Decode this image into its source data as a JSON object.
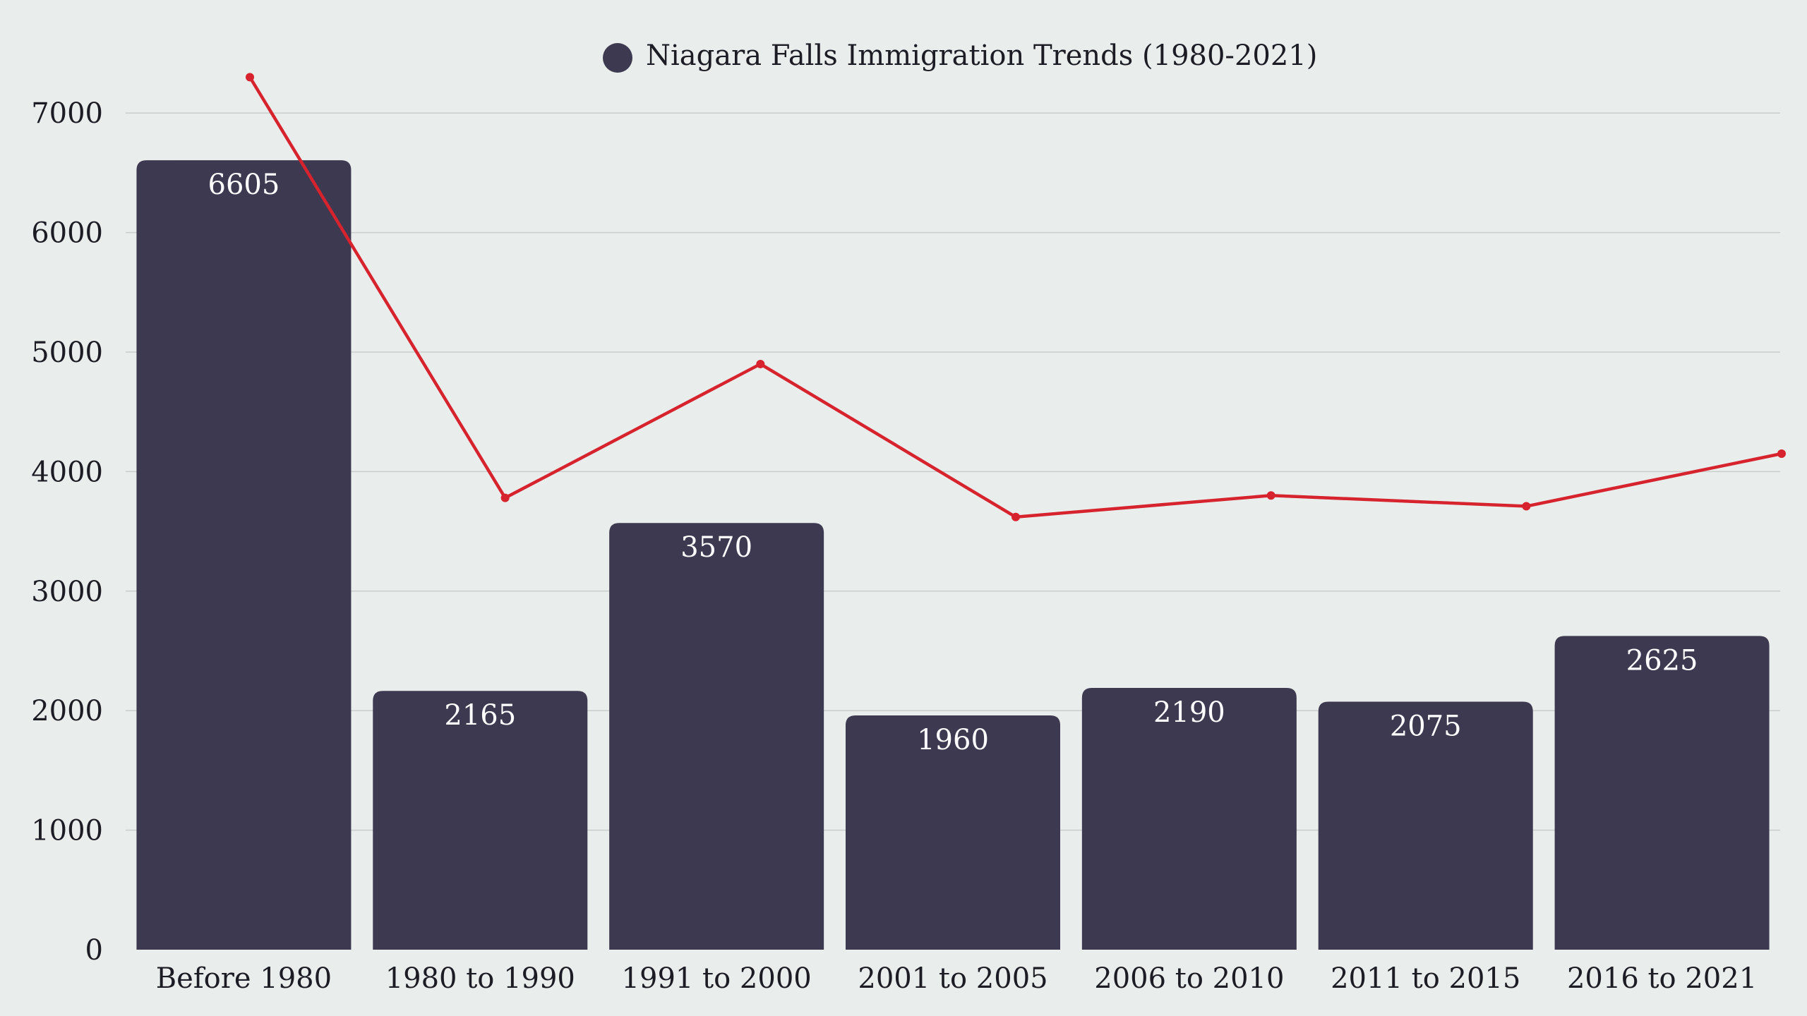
{
  "chart_data": {
    "type": "bar",
    "categories": [
      "Before 1980",
      "1980 to 1990",
      "1991 to 2000",
      "2001 to 2005",
      "2006 to 2010",
      "2011 to 2015",
      "2016 to 2021"
    ],
    "series": [
      {
        "name": "Niagara Falls Immigration Trends (1980-2021)",
        "type": "bar",
        "values": [
          6605,
          2165,
          3570,
          1960,
          2190,
          2075,
          2625
        ],
        "data_labels": [
          "6605",
          "2165",
          "3570",
          "1960",
          "2190",
          "2075",
          "2625"
        ],
        "color": "#3d3950"
      },
      {
        "type": "line",
        "values": [
          7300,
          3780,
          4900,
          3620,
          3800,
          3710,
          4150
        ],
        "color": "#d6232d"
      }
    ],
    "yticks": [
      "0",
      "1000",
      "2000",
      "3000",
      "4000",
      "5000",
      "6000",
      "7000"
    ],
    "ylim": [
      0,
      7000
    ],
    "grid": true,
    "legend": "top-center"
  }
}
